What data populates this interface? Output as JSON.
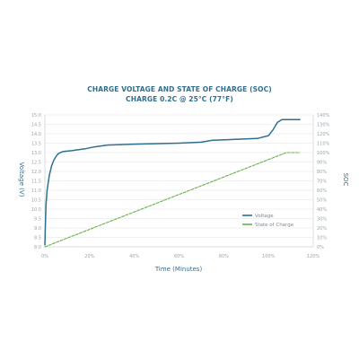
{
  "chart_data": {
    "type": "line",
    "title": "CHARGE VOLTAGE AND STATE OF CHARGE (SOC)",
    "subtitle": "CHARGE 0.2C @ 25°C (77°F)",
    "xlabel": "Time (Minutes)",
    "ylabel": "Voltage (V)",
    "y2label": "SOC",
    "x_ticks": [
      "0%",
      "20%",
      "40%",
      "60%",
      "80%",
      "100%",
      "120%"
    ],
    "y_ticks": [
      "8.0",
      "8.5",
      "9.0",
      "9.5",
      "10.0",
      "10.5",
      "11.0",
      "11.5",
      "12.0",
      "12.5",
      "13.0",
      "13.5",
      "14.0",
      "14.5",
      "15.0"
    ],
    "y2_ticks": [
      "0%",
      "10%",
      "20%",
      "30%",
      "40%",
      "50%",
      "60%",
      "70%",
      "80%",
      "90%",
      "100%",
      "110%",
      "120%",
      "130%",
      "140%"
    ],
    "xlim": [
      0,
      120
    ],
    "ylim": [
      8.0,
      15.0
    ],
    "y2lim": [
      0,
      140
    ],
    "grid": "horizontal",
    "legend_position": "bottom-right",
    "series": [
      {
        "name": "Voltage",
        "axis": "left",
        "color": "#2f6f8f",
        "points": [
          [
            0,
            8.1
          ],
          [
            0.5,
            10.2
          ],
          [
            1,
            11.0
          ],
          [
            2,
            11.8
          ],
          [
            3,
            12.3
          ],
          [
            4,
            12.6
          ],
          [
            5,
            12.8
          ],
          [
            6,
            12.95
          ],
          [
            8,
            13.05
          ],
          [
            12,
            13.1
          ],
          [
            18,
            13.2
          ],
          [
            22,
            13.3
          ],
          [
            28,
            13.4
          ],
          [
            40,
            13.45
          ],
          [
            60,
            13.5
          ],
          [
            70,
            13.55
          ],
          [
            75,
            13.65
          ],
          [
            85,
            13.7
          ],
          [
            95,
            13.75
          ],
          [
            100,
            13.9
          ],
          [
            102,
            14.2
          ],
          [
            104,
            14.6
          ],
          [
            106,
            14.75
          ],
          [
            114,
            14.75
          ]
        ]
      },
      {
        "name": "State of Charge",
        "axis": "right",
        "color": "#6ab04c",
        "points": [
          [
            0,
            0
          ],
          [
            108,
            100
          ],
          [
            114,
            100
          ]
        ]
      }
    ]
  }
}
